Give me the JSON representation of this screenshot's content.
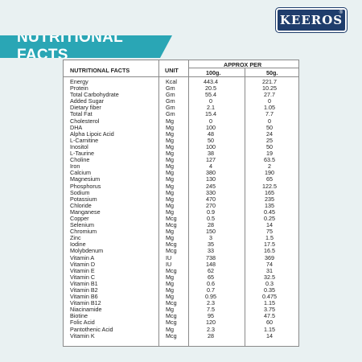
{
  "brand": {
    "logo_text": "KEEROS",
    "trademark": "®"
  },
  "banner": {
    "title": "NUTRITIONAL FACTS"
  },
  "table": {
    "headers": {
      "facts": "NUTRITIONAL FACTS",
      "unit": "UNIT",
      "approx_per": "APPROX PER",
      "col_100g": "100g.",
      "col_50g": "50g."
    },
    "rows": [
      [
        "Energy",
        "Kcal",
        "443.4",
        "221.7"
      ],
      [
        "Protein",
        "Gm",
        "20.5",
        "10.25"
      ],
      [
        "Total Carbohydrate",
        "Gm",
        "55.4",
        "27.7"
      ],
      [
        "Added Sugar",
        "Gm",
        "0",
        "0"
      ],
      [
        "Dietary fiber",
        "Gm",
        "2.1",
        "1.05"
      ],
      [
        "Total Fat",
        "Gm",
        "15.4",
        "7.7"
      ],
      [
        "Cholesterol",
        "Mg",
        "0",
        "0"
      ],
      [
        "DHA",
        "Mg",
        "100",
        "50"
      ],
      [
        "Alpha Lipoic Acid",
        "Mg",
        "48",
        "24"
      ],
      [
        "L-Carnitine",
        "Mg",
        "50",
        "25"
      ],
      [
        "Inositol",
        "Mg",
        "100",
        "50"
      ],
      [
        "L-Taurine",
        "Mg",
        "38",
        "19"
      ],
      [
        "Choline",
        "Mg",
        "127",
        "63.5"
      ],
      [
        "Iron",
        "Mg",
        "4",
        "2"
      ],
      [
        "Calcium",
        "Mg",
        "380",
        "190"
      ],
      [
        "Magnesium",
        "Mg",
        "130",
        "65"
      ],
      [
        "Phosphorus",
        "Mg",
        "245",
        "122.5"
      ],
      [
        "Sodium",
        "Mg",
        "330",
        "165"
      ],
      [
        "Potassium",
        "Mg",
        "470",
        "235"
      ],
      [
        "Chloride",
        "Mg",
        "270",
        "135"
      ],
      [
        "Manganese",
        "Mg",
        "0.9",
        "0.45"
      ],
      [
        "Copper",
        "Mcg",
        "0.5",
        "0.25"
      ],
      [
        "Selenium",
        "Mcg",
        "28",
        "14"
      ],
      [
        "Chromium",
        "Mg",
        "150",
        "75"
      ],
      [
        "Zinc",
        "Mg",
        "3",
        "1.5"
      ],
      [
        "Iodine",
        "Mcg",
        "35",
        "17.5"
      ],
      [
        "Molybdenum",
        "Mcg",
        "33",
        "16.5"
      ],
      [
        "Vitamin A",
        "IU",
        "738",
        "369"
      ],
      [
        "Vitamin D",
        "IU",
        "148",
        "74"
      ],
      [
        "Vitamin E",
        "Mcg",
        "62",
        "31"
      ],
      [
        "Vitamin C",
        "Mg",
        "65",
        "32.5"
      ],
      [
        "Vitamin B1",
        "Mg",
        "0.6",
        "0.3"
      ],
      [
        "Vitamin B2",
        "Mg",
        "0.7",
        "0.35"
      ],
      [
        "Vitamin B6",
        "Mg",
        "0.95",
        "0.475"
      ],
      [
        "Vitamin B12",
        "Mcg",
        "2.3",
        "1.15"
      ],
      [
        "Niacinamide",
        "Mg",
        "7.5",
        "3.75"
      ],
      [
        "Biotine",
        "Mcg",
        "95",
        "47.5"
      ],
      [
        "Folic Acid",
        "Mcg",
        "120",
        "60"
      ],
      [
        "Pantothenic Acid",
        "Mg",
        "2.3",
        "1.15"
      ],
      [
        "Vitamin K",
        "Mcg",
        "28",
        "14"
      ]
    ]
  },
  "colors": {
    "background": "#e9f1f2",
    "banner": "#2aa6b5",
    "logo": "#1f3d6c"
  }
}
